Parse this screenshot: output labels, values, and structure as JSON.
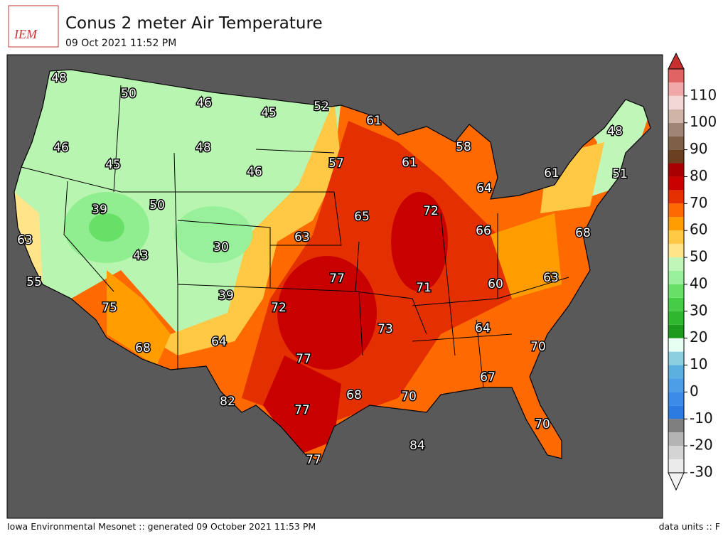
{
  "logo": "IEM",
  "title": "Conus 2 meter Air Temperature",
  "subtitle": "09 Oct 2021 11:52 PM",
  "footer_left": "Iowa Environmental Mesonet :: generated 09 October 2021 11:53 PM",
  "footer_right": "data units :: F",
  "map_labels": [
    48,
    50,
    46,
    45,
    52,
    61,
    46,
    48,
    58,
    45,
    46,
    57,
    61,
    61,
    48,
    51,
    64,
    39,
    50,
    65,
    72,
    66,
    68,
    63,
    63,
    30,
    43,
    77,
    63,
    55,
    60,
    71,
    39,
    72,
    75,
    73,
    64,
    70,
    68,
    64,
    77,
    67,
    68,
    70,
    82,
    77,
    70,
    84,
    77
  ],
  "colorbar": {
    "range": [
      -30,
      120
    ],
    "ticks": [
      -30,
      -20,
      -10,
      0,
      10,
      20,
      30,
      40,
      50,
      60,
      70,
      80,
      90,
      100,
      110
    ],
    "colors": [
      "#ebebeb",
      "#d4d4d4",
      "#b4b4b4",
      "#7f7f7f",
      "#2b7be0",
      "#3a8ce8",
      "#4c9fe6",
      "#5cb0e0",
      "#8ccfe0",
      "#e6fff2",
      "#1b9a1b",
      "#2fb82f",
      "#46cc46",
      "#68e068",
      "#98f09a",
      "#c0f7b8",
      "#ffe48a",
      "#ffc845",
      "#ff9c00",
      "#ff6a00",
      "#e43000",
      "#c80000",
      "#a80000",
      "#6a4020",
      "#7e6048",
      "#a08474",
      "#d0b4a8",
      "#f2d6d6",
      "#f0a8a8",
      "#e06464"
    ]
  }
}
